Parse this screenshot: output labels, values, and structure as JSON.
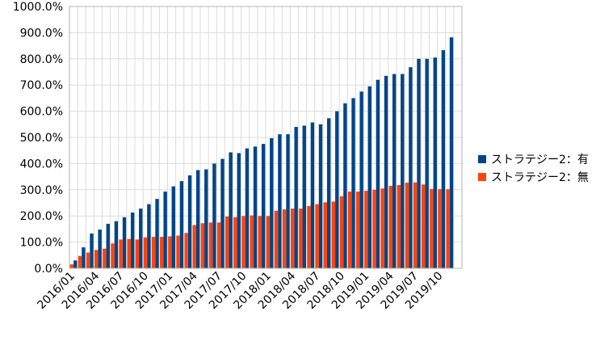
{
  "chart_data": {
    "type": "bar",
    "title": "",
    "xlabel": "",
    "ylabel": "",
    "ylim": [
      0,
      1000
    ],
    "y_tick_step": 100,
    "y_tick_labels": [
      "0.0%",
      "100.0%",
      "200.0%",
      "300.0%",
      "400.0%",
      "500.0%",
      "600.0%",
      "700.0%",
      "800.0%",
      "900.0%",
      "1000.0%"
    ],
    "grid": true,
    "legend_position": "right",
    "x_tick_labels": [
      "2016/01",
      "2016/04",
      "2016/07",
      "2016/10",
      "2017/01",
      "2017/04",
      "2017/07",
      "2017/10",
      "2018/01",
      "2018/04",
      "2018/07",
      "2018/10",
      "2019/01",
      "2019/04",
      "2019/07",
      "2019/10"
    ],
    "categories": [
      "2016/01",
      "2016/02",
      "2016/03",
      "2016/04",
      "2016/05",
      "2016/06",
      "2016/07",
      "2016/08",
      "2016/09",
      "2016/10",
      "2016/11",
      "2016/12",
      "2017/01",
      "2017/02",
      "2017/03",
      "2017/04",
      "2017/05",
      "2017/06",
      "2017/07",
      "2017/08",
      "2017/09",
      "2017/10",
      "2017/11",
      "2017/12",
      "2018/01",
      "2018/02",
      "2018/03",
      "2018/04",
      "2018/05",
      "2018/06",
      "2018/07",
      "2018/08",
      "2018/09",
      "2018/10",
      "2018/11",
      "2018/12",
      "2019/01",
      "2019/02",
      "2019/03",
      "2019/04",
      "2019/05",
      "2019/06",
      "2019/07",
      "2019/08",
      "2019/09",
      "2019/10",
      "2019/11",
      "2019/12"
    ],
    "series": [
      {
        "name": "ストラテジー2：有",
        "color": "#004586",
        "values": [
          30,
          80,
          133,
          148,
          170,
          180,
          195,
          213,
          228,
          245,
          265,
          293,
          313,
          333,
          355,
          375,
          378,
          400,
          418,
          443,
          440,
          458,
          465,
          475,
          497,
          512,
          512,
          540,
          545,
          557,
          550,
          573,
          600,
          630,
          650,
          675,
          695,
          720,
          735,
          742,
          742,
          768,
          800,
          800,
          805,
          833,
          882,
          0
        ]
      },
      {
        "name": "ストラテジー2：無",
        "color": "#ff420e",
        "values": [
          15,
          47,
          60,
          70,
          75,
          95,
          110,
          112,
          110,
          118,
          120,
          120,
          122,
          125,
          135,
          165,
          172,
          175,
          175,
          198,
          195,
          200,
          202,
          200,
          200,
          220,
          225,
          228,
          228,
          238,
          245,
          252,
          255,
          275,
          293,
          293,
          296,
          300,
          305,
          315,
          318,
          327,
          328,
          320,
          303,
          302,
          302,
          0
        ]
      }
    ]
  }
}
